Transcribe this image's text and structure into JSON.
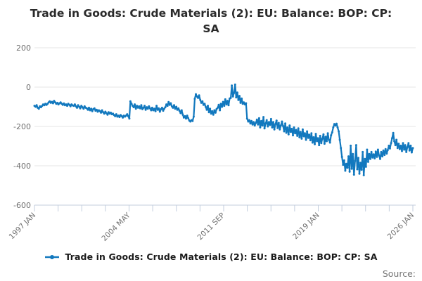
{
  "title": "Trade in Goods: Crude Materials (2): EU: Balance: BOP: CP: SA",
  "legend": {
    "label": "Trade in Goods: Crude Materials (2): EU: Balance: BOP: CP: SA"
  },
  "source_label": "Source:",
  "chart_data": {
    "type": "line",
    "title": "Trade in Goods: Crude Materials (2): EU: Balance: BOP: CP: SA",
    "xlabel": "",
    "ylabel": "",
    "x_start": "1997 JAN",
    "frequency": "monthly",
    "x_tick_labels": [
      "1997 JAN",
      "2004 MAY",
      "2011 SEP",
      "2019 JAN",
      "2026 JAN"
    ],
    "minor_tick_count": 17,
    "label_every_nth_tick": 4,
    "y_ticks": [
      200,
      0,
      -200,
      -400,
      -600
    ],
    "ylim": [
      -600,
      200
    ],
    "grid": "horizontal-only",
    "legend_position": "bottom-center",
    "marker": "dot",
    "colors": {
      "line": "#1278be",
      "grid": "#e4e4e4",
      "axis": "#c3cede",
      "tick_text": "#6f6f6f"
    },
    "values": [
      -95,
      -100,
      -92,
      -105,
      -110,
      -98,
      -102,
      -95,
      -88,
      -92,
      -85,
      -90,
      -85,
      -78,
      -72,
      -80,
      -75,
      -82,
      -70,
      -78,
      -85,
      -80,
      -88,
      -82,
      -78,
      -85,
      -90,
      -83,
      -92,
      -88,
      -95,
      -85,
      -90,
      -97,
      -88,
      -93,
      -95,
      -88,
      -98,
      -105,
      -92,
      -100,
      -108,
      -95,
      -102,
      -110,
      -98,
      -105,
      -108,
      -115,
      -105,
      -118,
      -110,
      -122,
      -112,
      -108,
      -120,
      -115,
      -125,
      -118,
      -122,
      -130,
      -118,
      -128,
      -135,
      -125,
      -132,
      -140,
      -128,
      -135,
      -130,
      -138,
      -135,
      -142,
      -148,
      -138,
      -150,
      -145,
      -152,
      -142,
      -148,
      -155,
      -145,
      -150,
      -145,
      -138,
      -148,
      -160,
      -72,
      -85,
      -95,
      -102,
      -88,
      -110,
      -95,
      -105,
      -98,
      -108,
      -92,
      -112,
      -105,
      -95,
      -115,
      -102,
      -110,
      -98,
      -108,
      -118,
      -105,
      -118,
      -110,
      -122,
      -95,
      -115,
      -108,
      -125,
      -112,
      -105,
      -120,
      -110,
      -102,
      -88,
      -95,
      -76,
      -90,
      -82,
      -98,
      -105,
      -92,
      -110,
      -100,
      -115,
      -108,
      -120,
      -132,
      -118,
      -140,
      -155,
      -148,
      -160,
      -145,
      -158,
      -170,
      -175,
      -168,
      -172,
      -150,
      -60,
      -36,
      -48,
      -55,
      -42,
      -65,
      -80,
      -72,
      -90,
      -85,
      -100,
      -115,
      -95,
      -128,
      -110,
      -135,
      -122,
      -140,
      -118,
      -130,
      -112,
      -105,
      -90,
      -118,
      -85,
      -100,
      -75,
      -95,
      -62,
      -88,
      -70,
      -92,
      -58,
      -55,
      8,
      -48,
      -30,
      13,
      -52,
      -28,
      -65,
      -45,
      -80,
      -58,
      -85,
      -78,
      -88,
      -82,
      -160,
      -175,
      -168,
      -185,
      -172,
      -190,
      -178,
      -195,
      -182,
      -165,
      -190,
      -158,
      -205,
      -172,
      -195,
      -152,
      -210,
      -185,
      -168,
      -200,
      -178,
      -192,
      -162,
      -205,
      -178,
      -215,
      -188,
      -170,
      -208,
      -182,
      -215,
      -195,
      -175,
      -198,
      -225,
      -185,
      -232,
      -205,
      -240,
      -195,
      -228,
      -212,
      -245,
      -205,
      -235,
      -218,
      -248,
      -210,
      -255,
      -228,
      -262,
      -215,
      -250,
      -235,
      -268,
      -225,
      -258,
      -242,
      -270,
      -235,
      -282,
      -255,
      -290,
      -238,
      -275,
      -260,
      -295,
      -248,
      -285,
      -262,
      -240,
      -288,
      -252,
      -275,
      -235,
      -268,
      -282,
      -245,
      -230,
      -205,
      -188,
      -195,
      -186,
      -205,
      -225,
      -268,
      -310,
      -355,
      -395,
      -372,
      -425,
      -390,
      -410,
      -352,
      -430,
      -298,
      -415,
      -340,
      -445,
      -375,
      -295,
      -418,
      -360,
      -440,
      -385,
      -420,
      -330,
      -448,
      -365,
      -405,
      -318,
      -380,
      -340,
      -365,
      -330,
      -358,
      -342,
      -362,
      -328,
      -355,
      -318,
      -348,
      -365,
      -330,
      -352,
      -322,
      -345,
      -315,
      -338,
      -320,
      -298,
      -312,
      -285,
      -260,
      -233,
      -275,
      -295,
      -268,
      -310,
      -288,
      -315,
      -298,
      -325,
      -285,
      -318,
      -295,
      -330,
      -305,
      -285,
      -322,
      -298,
      -332,
      -310
    ]
  }
}
